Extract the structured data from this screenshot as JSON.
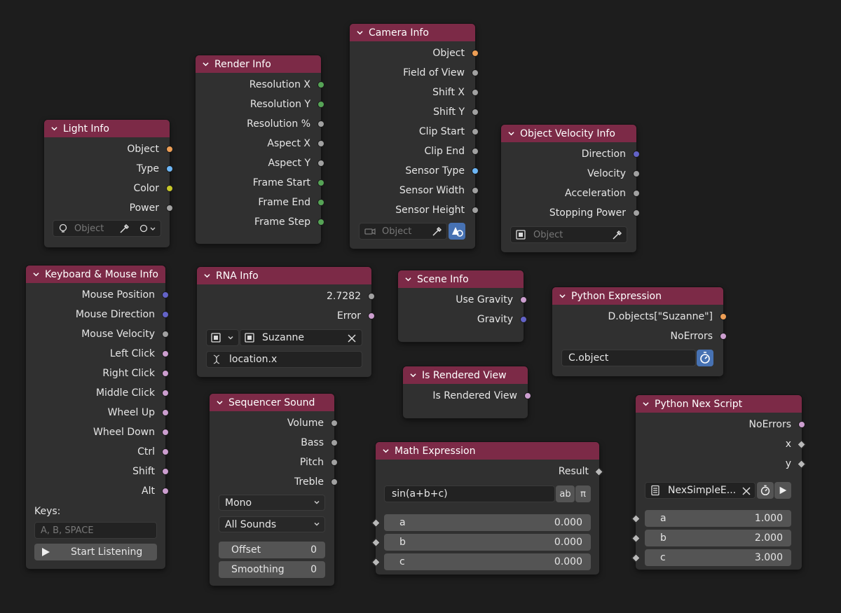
{
  "light_info": {
    "title": "Light Info",
    "outputs": [
      "Object",
      "Type",
      "Color",
      "Power"
    ],
    "object_field_placeholder": "Object"
  },
  "render_info": {
    "title": "Render Info",
    "outputs": [
      "Resolution X",
      "Resolution Y",
      "Resolution %",
      "Aspect X",
      "Aspect Y",
      "Frame Start",
      "Frame End",
      "Frame Step"
    ]
  },
  "camera_info": {
    "title": "Camera Info",
    "outputs": [
      "Object",
      "Field of View",
      "Shift X",
      "Shift Y",
      "Clip Start",
      "Clip End",
      "Sensor Type",
      "Sensor Width",
      "Sensor Height"
    ],
    "object_field_placeholder": "Object"
  },
  "object_velocity_info": {
    "title": "Object Velocity Info",
    "outputs": [
      "Direction",
      "Velocity",
      "Acceleration",
      "Stopping Power"
    ],
    "object_field_placeholder": "Object"
  },
  "keyboard_mouse_info": {
    "title": "Keyboard & Mouse Info",
    "outputs": [
      "Mouse Position",
      "Mouse Direction",
      "Mouse Velocity",
      "Left Click",
      "Right Click",
      "Middle Click",
      "Wheel Up",
      "Wheel Down",
      "Ctrl",
      "Shift",
      "Alt"
    ],
    "keys_label": "Keys:",
    "keys_placeholder": "A, B, SPACE",
    "start_button": "Start Listening"
  },
  "rna_info": {
    "title": "RNA Info",
    "outputs": [
      "2.7282",
      "Error"
    ],
    "object_value": "Suzanne",
    "path_value": "location.x"
  },
  "scene_info": {
    "title": "Scene Info",
    "outputs": [
      "Use Gravity",
      "Gravity"
    ]
  },
  "python_expression": {
    "title": "Python Expression",
    "outputs": [
      "D.objects[\"Suzanne\"]",
      "NoErrors"
    ],
    "expression": "C.object"
  },
  "is_rendered_view": {
    "title": "Is Rendered View",
    "outputs": [
      "Is Rendered View"
    ]
  },
  "sequencer_sound": {
    "title": "Sequencer Sound",
    "outputs": [
      "Volume",
      "Bass",
      "Pitch",
      "Treble"
    ],
    "channel_mode": "Mono",
    "sound_selection": "All Sounds",
    "offset_label": "Offset",
    "offset_value": "0",
    "smoothing_label": "Smoothing",
    "smoothing_value": "0"
  },
  "math_expression": {
    "title": "Math Expression",
    "outputs": [
      "Result"
    ],
    "expression": "sin(a+b+c)",
    "ab_button": "ab",
    "pi_button": "π",
    "inputs": [
      {
        "label": "a",
        "value": "0.000"
      },
      {
        "label": "b",
        "value": "0.000"
      },
      {
        "label": "c",
        "value": "0.000"
      }
    ]
  },
  "python_nex_script": {
    "title": "Python Nex Script",
    "outputs": [
      "NoErrors",
      "x",
      "y"
    ],
    "script_name": "NexSimpleE...",
    "inputs": [
      {
        "label": "a",
        "value": "1.000"
      },
      {
        "label": "b",
        "value": "2.000"
      },
      {
        "label": "c",
        "value": "3.000"
      }
    ]
  },
  "colors": {
    "header": "#7c2a47",
    "node_body": "#303030",
    "background": "#1d1d1d",
    "socket_object": "#ed9e55",
    "socket_int": "#56a456",
    "socket_float": "#a1a1a1",
    "socket_vector": "#6363c7",
    "socket_bool": "#cc9ecf",
    "socket_color": "#c7c729",
    "socket_string": "#6db6f5"
  }
}
